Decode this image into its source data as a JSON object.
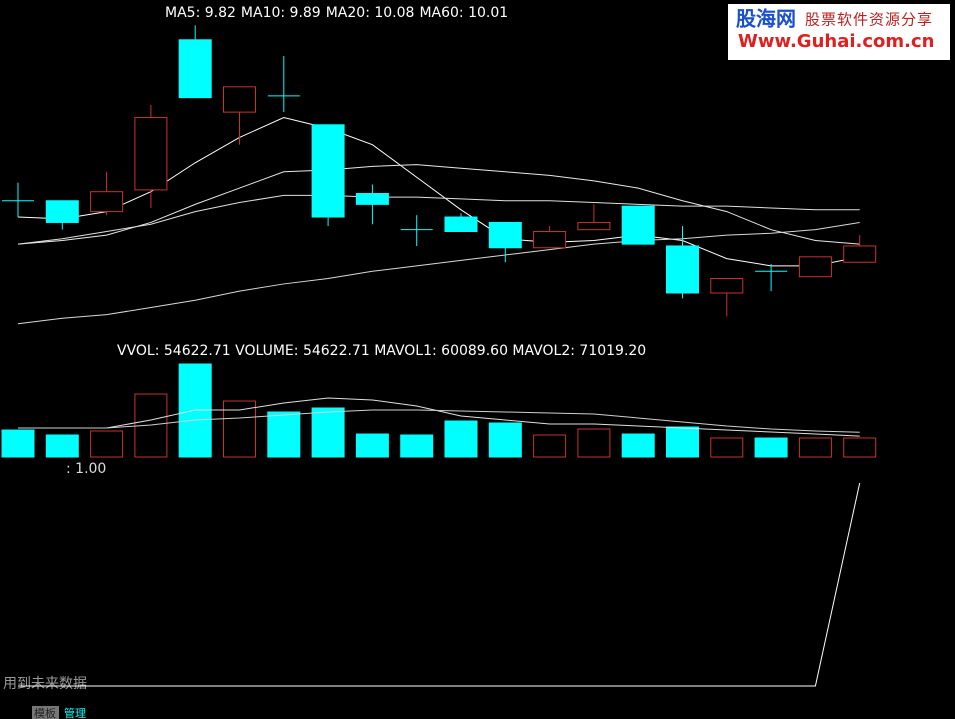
{
  "chart_data": [
    {
      "type": "candlestick",
      "ylim": [
        9.36,
        11.24
      ],
      "up_color": "#c83232",
      "down_color": "#00ffff",
      "header": [
        "MA5: 9.82",
        "MA10: 9.89",
        "MA20: 10.08",
        "MA60: 10.01"
      ],
      "open": [
        10.13,
        10.13,
        10.07,
        10.19,
        11.02,
        10.62,
        10.71,
        10.55,
        10.17,
        9.97,
        10.04,
        10.01,
        9.87,
        9.97,
        10.1,
        9.88,
        9.62,
        9.74,
        9.71,
        9.79
      ],
      "high": [
        10.23,
        10.13,
        10.29,
        10.66,
        11.1,
        10.76,
        10.93,
        10.55,
        10.22,
        10.05,
        10.06,
        10.01,
        9.99,
        10.11,
        10.1,
        9.99,
        9.7,
        9.78,
        9.82,
        9.94
      ],
      "low": [
        10.04,
        9.97,
        10.05,
        10.09,
        10.7,
        10.44,
        10.62,
        9.99,
        10.0,
        9.88,
        9.96,
        9.79,
        9.87,
        9.97,
        9.89,
        9.59,
        9.49,
        9.63,
        9.71,
        9.79
      ],
      "close": [
        10.13,
        10.01,
        10.18,
        10.59,
        10.7,
        10.76,
        10.71,
        10.04,
        10.11,
        9.97,
        9.96,
        9.87,
        9.96,
        10.01,
        9.89,
        9.62,
        9.7,
        9.74,
        9.82,
        9.88
      ],
      "series": [
        {
          "color": "#ffffff",
          "values": [
            10.04,
            10.03,
            10.07,
            10.18,
            10.34,
            10.48,
            10.59,
            10.53,
            10.44,
            10.26,
            10.08,
            9.92,
            9.9,
            9.91,
            9.94,
            9.91,
            9.81,
            9.77,
            9.77,
            9.82
          ]
        },
        {
          "color": "#e8e8e8",
          "values": [
            9.89,
            9.91,
            9.94,
            10.01,
            10.11,
            10.2,
            10.29,
            10.3,
            10.32,
            10.33,
            10.31,
            10.29,
            10.27,
            10.24,
            10.2,
            10.13,
            10.07,
            9.97,
            9.91,
            9.89
          ]
        },
        {
          "color": "#e0e0e0",
          "values": [
            9.89,
            9.92,
            9.96,
            10.0,
            10.07,
            10.12,
            10.16,
            10.16,
            10.15,
            10.15,
            10.14,
            10.13,
            10.13,
            10.12,
            10.11,
            10.1,
            10.1,
            10.09,
            10.08,
            10.08
          ]
        },
        {
          "color": "#d8d8d8",
          "values": [
            9.45,
            9.48,
            9.5,
            9.54,
            9.58,
            9.63,
            9.67,
            9.7,
            9.74,
            9.77,
            9.8,
            9.83,
            9.86,
            9.89,
            9.91,
            9.92,
            9.94,
            9.95,
            9.97,
            10.01
          ]
        }
      ]
    },
    {
      "type": "volume",
      "ylim": [
        0,
        336375
      ],
      "header": "VVOL: 54622.71  VOLUME: 54622.71 MAVOL1: 60089.60 MAVOL2: 71019.20",
      "values": [
        77600,
        63250,
        74750,
        181100,
        267400,
        161000,
        129400,
        140900,
        66100,
        63250,
        103500,
        97750,
        63250,
        80500,
        66100,
        86250,
        54600,
        54600,
        54600,
        54622.71
      ],
      "colors": [
        "#00ffff",
        "#00ffff",
        "#c83232",
        "#c83232",
        "#00ffff",
        "#c83232",
        "#00ffff",
        "#00ffff",
        "#00ffff",
        "#00ffff",
        "#00ffff",
        "#00ffff",
        "#c83232",
        "#c83232",
        "#00ffff",
        "#00ffff",
        "#c83232",
        "#00ffff",
        "#c83232",
        "#c83232"
      ],
      "series": [
        {
          "color": "#e0e0e0",
          "values": [
            83400,
            83400,
            83400,
            106400,
            135100,
            135100,
            155300,
            169600,
            163900,
            146600,
            117900,
            106400,
            94900,
            94900,
            89100,
            83400,
            77600,
            71900,
            66100,
            60089.6
          ]
        },
        {
          "color": "#d0d0d0",
          "values": [
            83400,
            83400,
            83400,
            92000,
            106400,
            112100,
            120800,
            129400,
            135100,
            135100,
            132300,
            129400,
            126500,
            123600,
            112100,
            100600,
            89100,
            80500,
            74750,
            71019.2
          ]
        }
      ]
    },
    {
      "type": "line",
      "ylim": [
        0,
        1
      ],
      "label": ": 1.00",
      "color": "#ffffff",
      "values": [
        0,
        0,
        0,
        0,
        0,
        0,
        0,
        0,
        0,
        0,
        0,
        0,
        0,
        0,
        0,
        0,
        0,
        0,
        0,
        1
      ],
      "note": "用到未来数据"
    }
  ],
  "footer": {
    "tabs": [
      "模板",
      "管理"
    ]
  },
  "logo": {
    "name": "股海网",
    "slogan": "股票软件资源分享",
    "url": "Www.Guhai.com.cn"
  }
}
